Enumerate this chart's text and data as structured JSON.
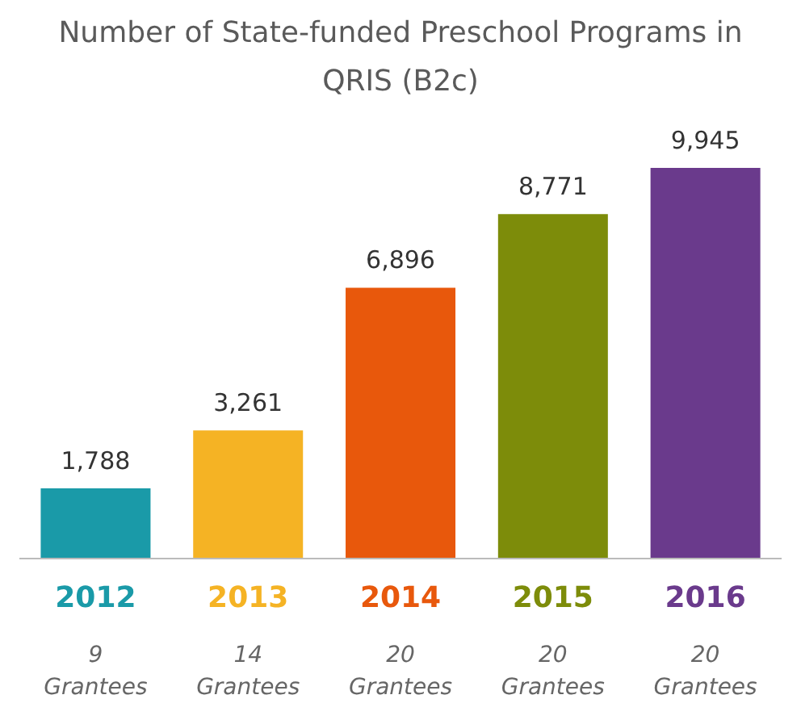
{
  "chart_data": {
    "type": "bar",
    "title": "Number of State-funded Preschool Programs in QRIS (B2c)",
    "categories": [
      "2012",
      "2013",
      "2014",
      "2015",
      "2016"
    ],
    "values": [
      1788,
      3261,
      6896,
      8771,
      9945
    ],
    "colors": [
      "#1a9aa8",
      "#f5b324",
      "#e8580c",
      "#7d8c0a",
      "#6a3a8c"
    ],
    "value_labels": [
      "1,788",
      "3,261",
      "6,896",
      "8,771",
      "9,945"
    ],
    "annotations": [
      "9 Grantees",
      "14 Grantees",
      "20 Grantees",
      "20 Grantees",
      "20 Grantees"
    ]
  }
}
